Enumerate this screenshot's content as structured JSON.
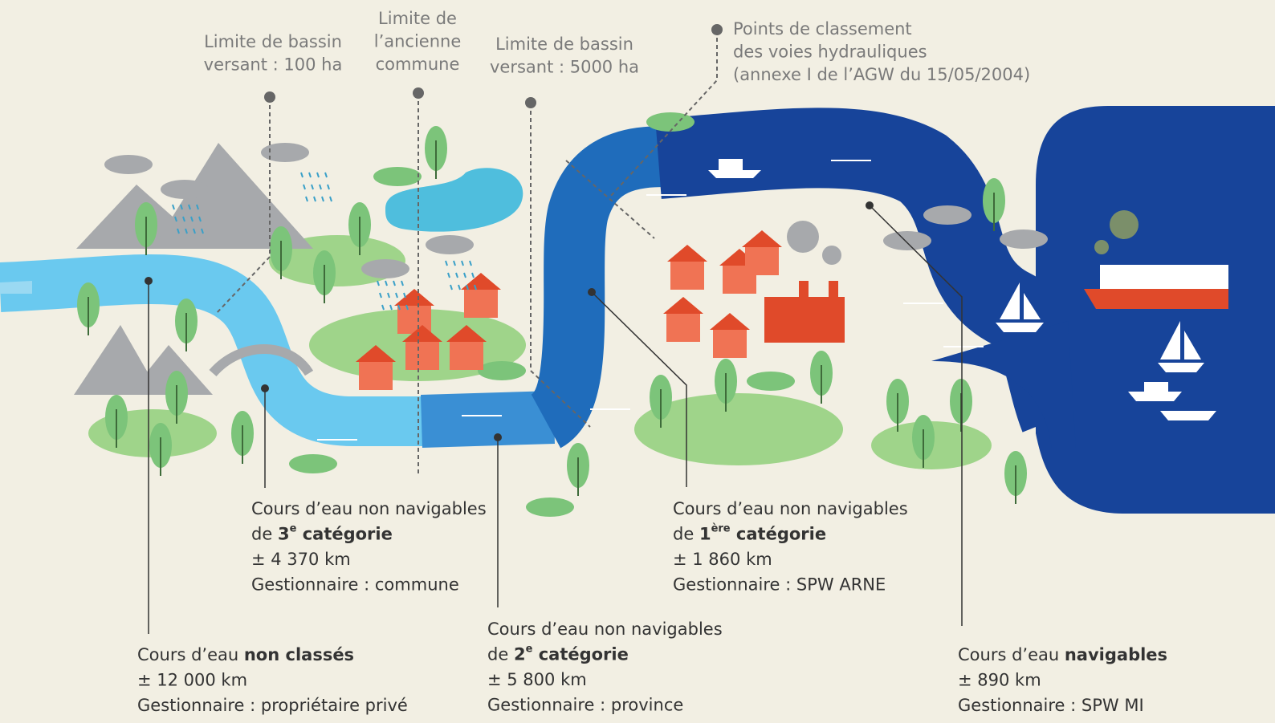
{
  "labels": {
    "basin_100": [
      "Limite de bassin",
      "versant : 100 ha"
    ],
    "old_commune": [
      "Limite de",
      "l’ancienne",
      "commune"
    ],
    "basin_5000": [
      "Limite de bassin",
      "versant : 5000 ha"
    ],
    "classification_points": [
      "Points de classement",
      "des voies hydrauliques",
      "(annexe I de l’AGW du 15/05/2004)"
    ]
  },
  "categories": [
    {
      "lead": "Cours d’eau ",
      "bold": "non classés",
      "length": "± 12 000 km",
      "manager": "Gestionnaire : propriétaire privé"
    },
    {
      "line1": "Cours d’eau non navigables",
      "lead": "de ",
      "number": "3",
      "sup": "e",
      "bold": " catégorie",
      "length": "± 4 370 km",
      "manager": "Gestionnaire : commune"
    },
    {
      "line1": "Cours d’eau non navigables",
      "lead": "de ",
      "number": "2",
      "sup": "e",
      "bold": " catégorie",
      "length": "± 5 800 km",
      "manager": "Gestionnaire : province"
    },
    {
      "line1": "Cours d’eau non navigables",
      "lead": "de ",
      "number": "1",
      "sup": "ère",
      "bold": " catégorie",
      "length": "± 1 860 km",
      "manager": "Gestionnaire : SPW ARNE"
    },
    {
      "lead": "Cours d’eau ",
      "bold": "navigables",
      "length": "± 890 km",
      "manager": "Gestionnaire : SPW MI"
    }
  ]
}
